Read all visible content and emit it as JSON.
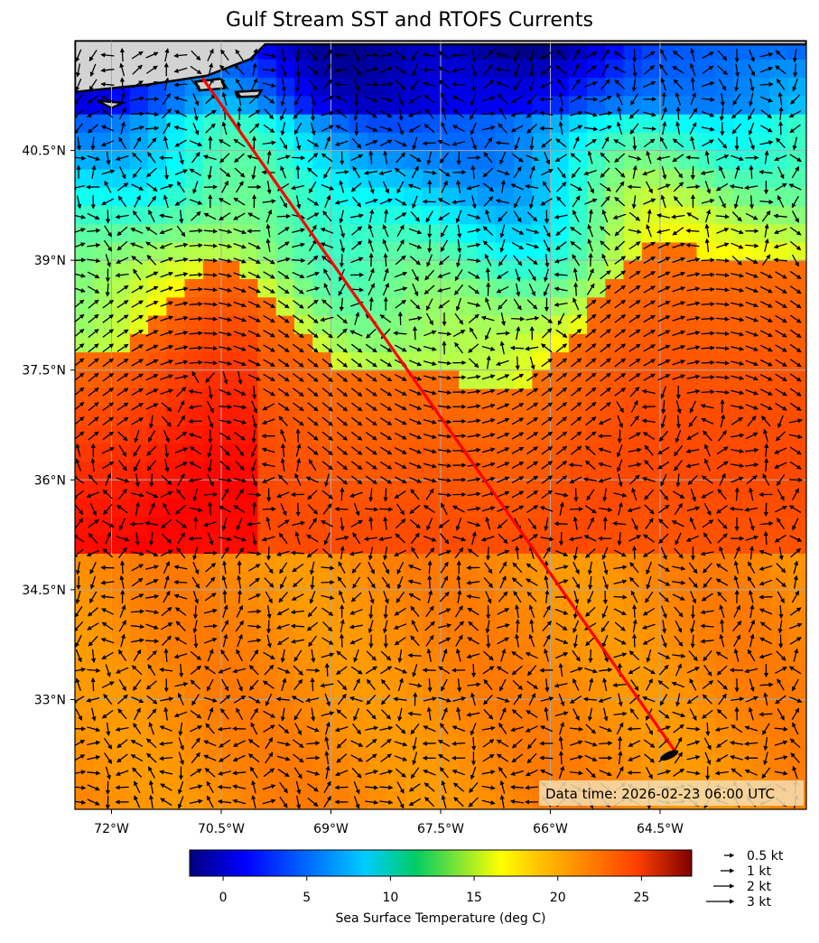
{
  "title": "Gulf Stream SST and RTOFS Currents",
  "map": {
    "lon_range": [
      -72.5,
      -62.5
    ],
    "lat_range": [
      31.5,
      42.0
    ],
    "x_ticks": [
      "72°W",
      "70.5°W",
      "69°W",
      "67.5°W",
      "66°W",
      "64.5°W"
    ],
    "x_tick_values": [
      -72,
      -70.5,
      -69,
      -67.5,
      -66,
      -64.5
    ],
    "y_ticks": [
      "40.5°N",
      "39°N",
      "37.5°N",
      "36°N",
      "34.5°N",
      "33°N"
    ],
    "y_tick_values": [
      40.5,
      39,
      37.5,
      36,
      34.5,
      33
    ],
    "grid": true,
    "land_color": "#d3d3d3",
    "route_color": "#ff0000",
    "route": {
      "start": {
        "lon": -70.75,
        "lat": 41.48
      },
      "end": {
        "lon": -64.3,
        "lat": 32.3
      }
    },
    "data_time": "Data time: 2026-02-23 06:00 UTC"
  },
  "colorbar": {
    "label": "Sea Surface Temperature (deg C)",
    "range": [
      -2,
      28
    ],
    "ticks": [
      "0",
      "5",
      "10",
      "15",
      "20",
      "25"
    ],
    "tick_values": [
      0,
      5,
      10,
      15,
      20,
      25
    ],
    "colormap": "jet"
  },
  "legend": {
    "items": [
      {
        "label": "0.5 kt",
        "value": 0.5
      },
      {
        "label": "1 kt",
        "value": 1
      },
      {
        "label": "2 kt",
        "value": 2
      },
      {
        "label": "3 kt",
        "value": 3
      }
    ]
  }
}
